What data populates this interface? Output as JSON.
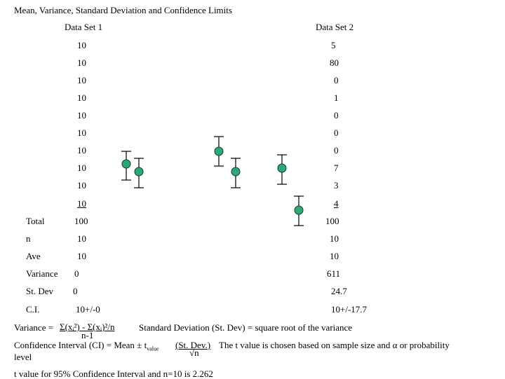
{
  "title": "Mean, Variance, Standard Deviation and Confidence Limits",
  "set1": {
    "header": "Data Set 1",
    "values": [
      "10",
      "10",
      "10",
      "10",
      "10",
      "10",
      "10",
      "10",
      "10",
      "10"
    ],
    "total": "100",
    "n": "10",
    "ave": "10",
    "variance": "0",
    "stdev": "0",
    "ci": "10+/-0"
  },
  "set2": {
    "header": "Data Set 2",
    "values": [
      "5",
      "80",
      "0",
      "1",
      "0",
      "0",
      "0",
      "7",
      "3",
      "4"
    ],
    "total": "100",
    "n": "10",
    "ave": "10",
    "variance": "611",
    "stdev": "24.7",
    "ci": "10+/-17.7"
  },
  "row_labels": {
    "total": "Total",
    "n": "n",
    "ave": "Ave",
    "variance": "Variance",
    "stdev": "St. Dev",
    "ci": "C.I."
  },
  "formulas": {
    "variance_lhs": "Variance = ",
    "variance_numerator": "Σ(xᵢ²) - Σ(xᵢ)²/n",
    "variance_denominator": "n-1",
    "stdev_text": "Standard Deviation (St. Dev) = square root of the variance",
    "ci_lhs": "Confidence Interval (CI) = Mean ± t",
    "ci_sub": "value",
    "ci_numerator": "(St. Dev.)",
    "ci_denominator": "√n",
    "ci_note": "The t value is chosen based on sample size and α or probability",
    "ci_note_cont": "level",
    "t_value": "t value for 95% Confidence Interval and n=10 is 2.262"
  },
  "colors": {
    "point_fill": "#2aa876",
    "point_stroke": "#1a3b2c"
  }
}
